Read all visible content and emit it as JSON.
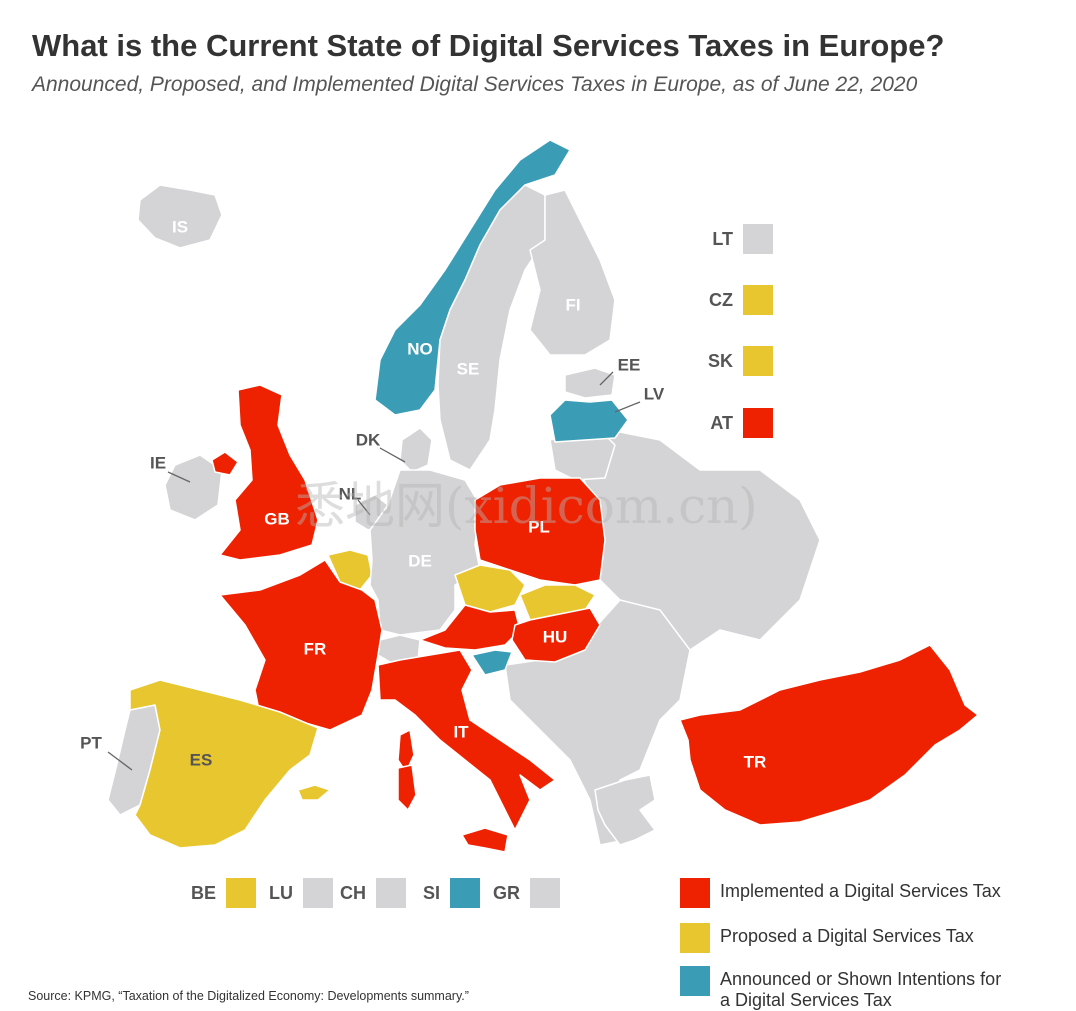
{
  "title": "What is the Current State of Digital Services Taxes in Europe?",
  "subtitle": "Announced, Proposed, and Implemented Digital Services Taxes in Europe, as of June 22, 2020",
  "colors": {
    "implemented": "#ee2200",
    "proposed": "#e8c630",
    "announced": "#3a9db5",
    "none": "#d4d4d6"
  },
  "map": {
    "countries": [
      {
        "code": "IS",
        "status": "none"
      },
      {
        "code": "NO",
        "status": "announced"
      },
      {
        "code": "SE",
        "status": "none"
      },
      {
        "code": "FI",
        "status": "none"
      },
      {
        "code": "EE",
        "status": "none"
      },
      {
        "code": "LV",
        "status": "announced"
      },
      {
        "code": "DK",
        "status": "none"
      },
      {
        "code": "IE",
        "status": "none"
      },
      {
        "code": "GB",
        "status": "implemented"
      },
      {
        "code": "NL",
        "status": "none"
      },
      {
        "code": "DE",
        "status": "none"
      },
      {
        "code": "PL",
        "status": "implemented"
      },
      {
        "code": "FR",
        "status": "implemented"
      },
      {
        "code": "HU",
        "status": "implemented"
      },
      {
        "code": "IT",
        "status": "implemented"
      },
      {
        "code": "PT",
        "status": "none"
      },
      {
        "code": "ES",
        "status": "proposed"
      },
      {
        "code": "TR",
        "status": "implemented"
      },
      {
        "code": "BE",
        "status": "proposed"
      },
      {
        "code": "CZ",
        "status": "proposed"
      },
      {
        "code": "SK",
        "status": "proposed"
      },
      {
        "code": "AT",
        "status": "implemented"
      },
      {
        "code": "SI",
        "status": "announced"
      }
    ]
  },
  "side_keys": [
    {
      "code": "LT",
      "status": "none"
    },
    {
      "code": "CZ",
      "status": "proposed"
    },
    {
      "code": "SK",
      "status": "proposed"
    },
    {
      "code": "AT",
      "status": "implemented"
    }
  ],
  "bottom_keys": [
    {
      "code": "BE",
      "status": "proposed"
    },
    {
      "code": "LU",
      "status": "none"
    },
    {
      "code": "CH",
      "status": "none"
    },
    {
      "code": "SI",
      "status": "announced"
    },
    {
      "code": "GR",
      "status": "none"
    }
  ],
  "legend": [
    {
      "label": "Implemented a Digital Services Tax",
      "status": "implemented"
    },
    {
      "label": "Proposed a Digital Services Tax",
      "status": "proposed"
    },
    {
      "label": "Announced or Shown Intentions for a Digital Services Tax",
      "status": "announced"
    }
  ],
  "source": "Source: KPMG, “Taxation of the Digitalized Economy: Developments summary.”",
  "watermark": "悉地网(xidicom.cn)"
}
